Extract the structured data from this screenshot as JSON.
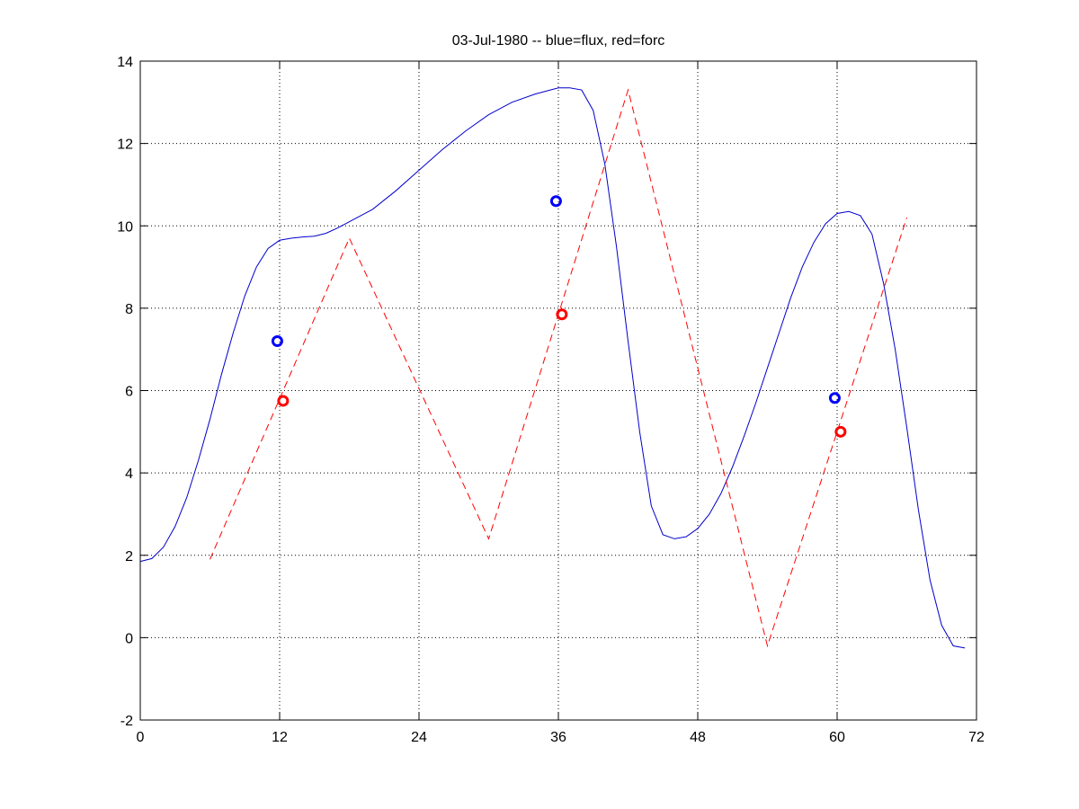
{
  "chart_data": {
    "type": "line",
    "title": "03-Jul-1980 -- blue=flux, red=forc",
    "xlim": [
      0,
      72
    ],
    "ylim": [
      -2,
      14
    ],
    "xticks": [
      0,
      12,
      24,
      36,
      48,
      60,
      72
    ],
    "yticks": [
      -2,
      0,
      2,
      4,
      6,
      8,
      10,
      12,
      14
    ],
    "grid": true,
    "series": [
      {
        "color": "#0000cc",
        "style": "solid",
        "x": [
          0,
          1,
          2,
          3,
          4,
          5,
          6,
          7,
          8,
          9,
          10,
          11,
          12,
          13,
          14,
          15,
          16,
          17,
          18,
          20,
          22,
          24,
          26,
          28,
          30,
          32,
          34,
          36,
          37,
          38,
          39,
          40,
          41,
          42,
          43,
          44,
          45,
          46,
          47,
          48,
          49,
          50,
          51,
          52,
          53,
          54,
          55,
          56,
          57,
          58,
          59,
          60,
          61,
          62,
          63,
          64,
          65,
          66,
          67,
          68,
          69,
          70,
          71
        ],
        "y": [
          1.85,
          1.92,
          2.2,
          2.7,
          3.4,
          4.3,
          5.3,
          6.4,
          7.4,
          8.3,
          9.0,
          9.45,
          9.65,
          9.7,
          9.73,
          9.75,
          9.82,
          9.95,
          10.1,
          10.4,
          10.85,
          11.35,
          11.85,
          12.3,
          12.7,
          13.0,
          13.2,
          13.35,
          13.35,
          13.3,
          12.8,
          11.5,
          9.5,
          7.2,
          5.0,
          3.2,
          2.5,
          2.4,
          2.45,
          2.65,
          3.0,
          3.5,
          4.15,
          4.9,
          5.7,
          6.55,
          7.4,
          8.25,
          9.0,
          9.6,
          10.05,
          10.3,
          10.35,
          10.25,
          9.8,
          8.6,
          7.0,
          5.1,
          3.1,
          1.4,
          0.3,
          -0.2,
          -0.25
        ]
      },
      {
        "color": "#ff0000",
        "style": "dashed",
        "x": [
          6,
          18,
          30,
          42,
          54,
          66
        ],
        "y": [
          1.9,
          9.7,
          2.4,
          13.3,
          -0.2,
          10.2
        ]
      }
    ],
    "markers": [
      {
        "color": "#0000ff",
        "x": 11.8,
        "y": 7.2
      },
      {
        "color": "#ff0000",
        "x": 12.3,
        "y": 5.75
      },
      {
        "color": "#0000ff",
        "x": 35.8,
        "y": 10.6
      },
      {
        "color": "#ff0000",
        "x": 36.3,
        "y": 7.85
      },
      {
        "color": "#0000ff",
        "x": 59.8,
        "y": 5.82
      },
      {
        "color": "#ff0000",
        "x": 60.3,
        "y": 5.0
      }
    ]
  }
}
